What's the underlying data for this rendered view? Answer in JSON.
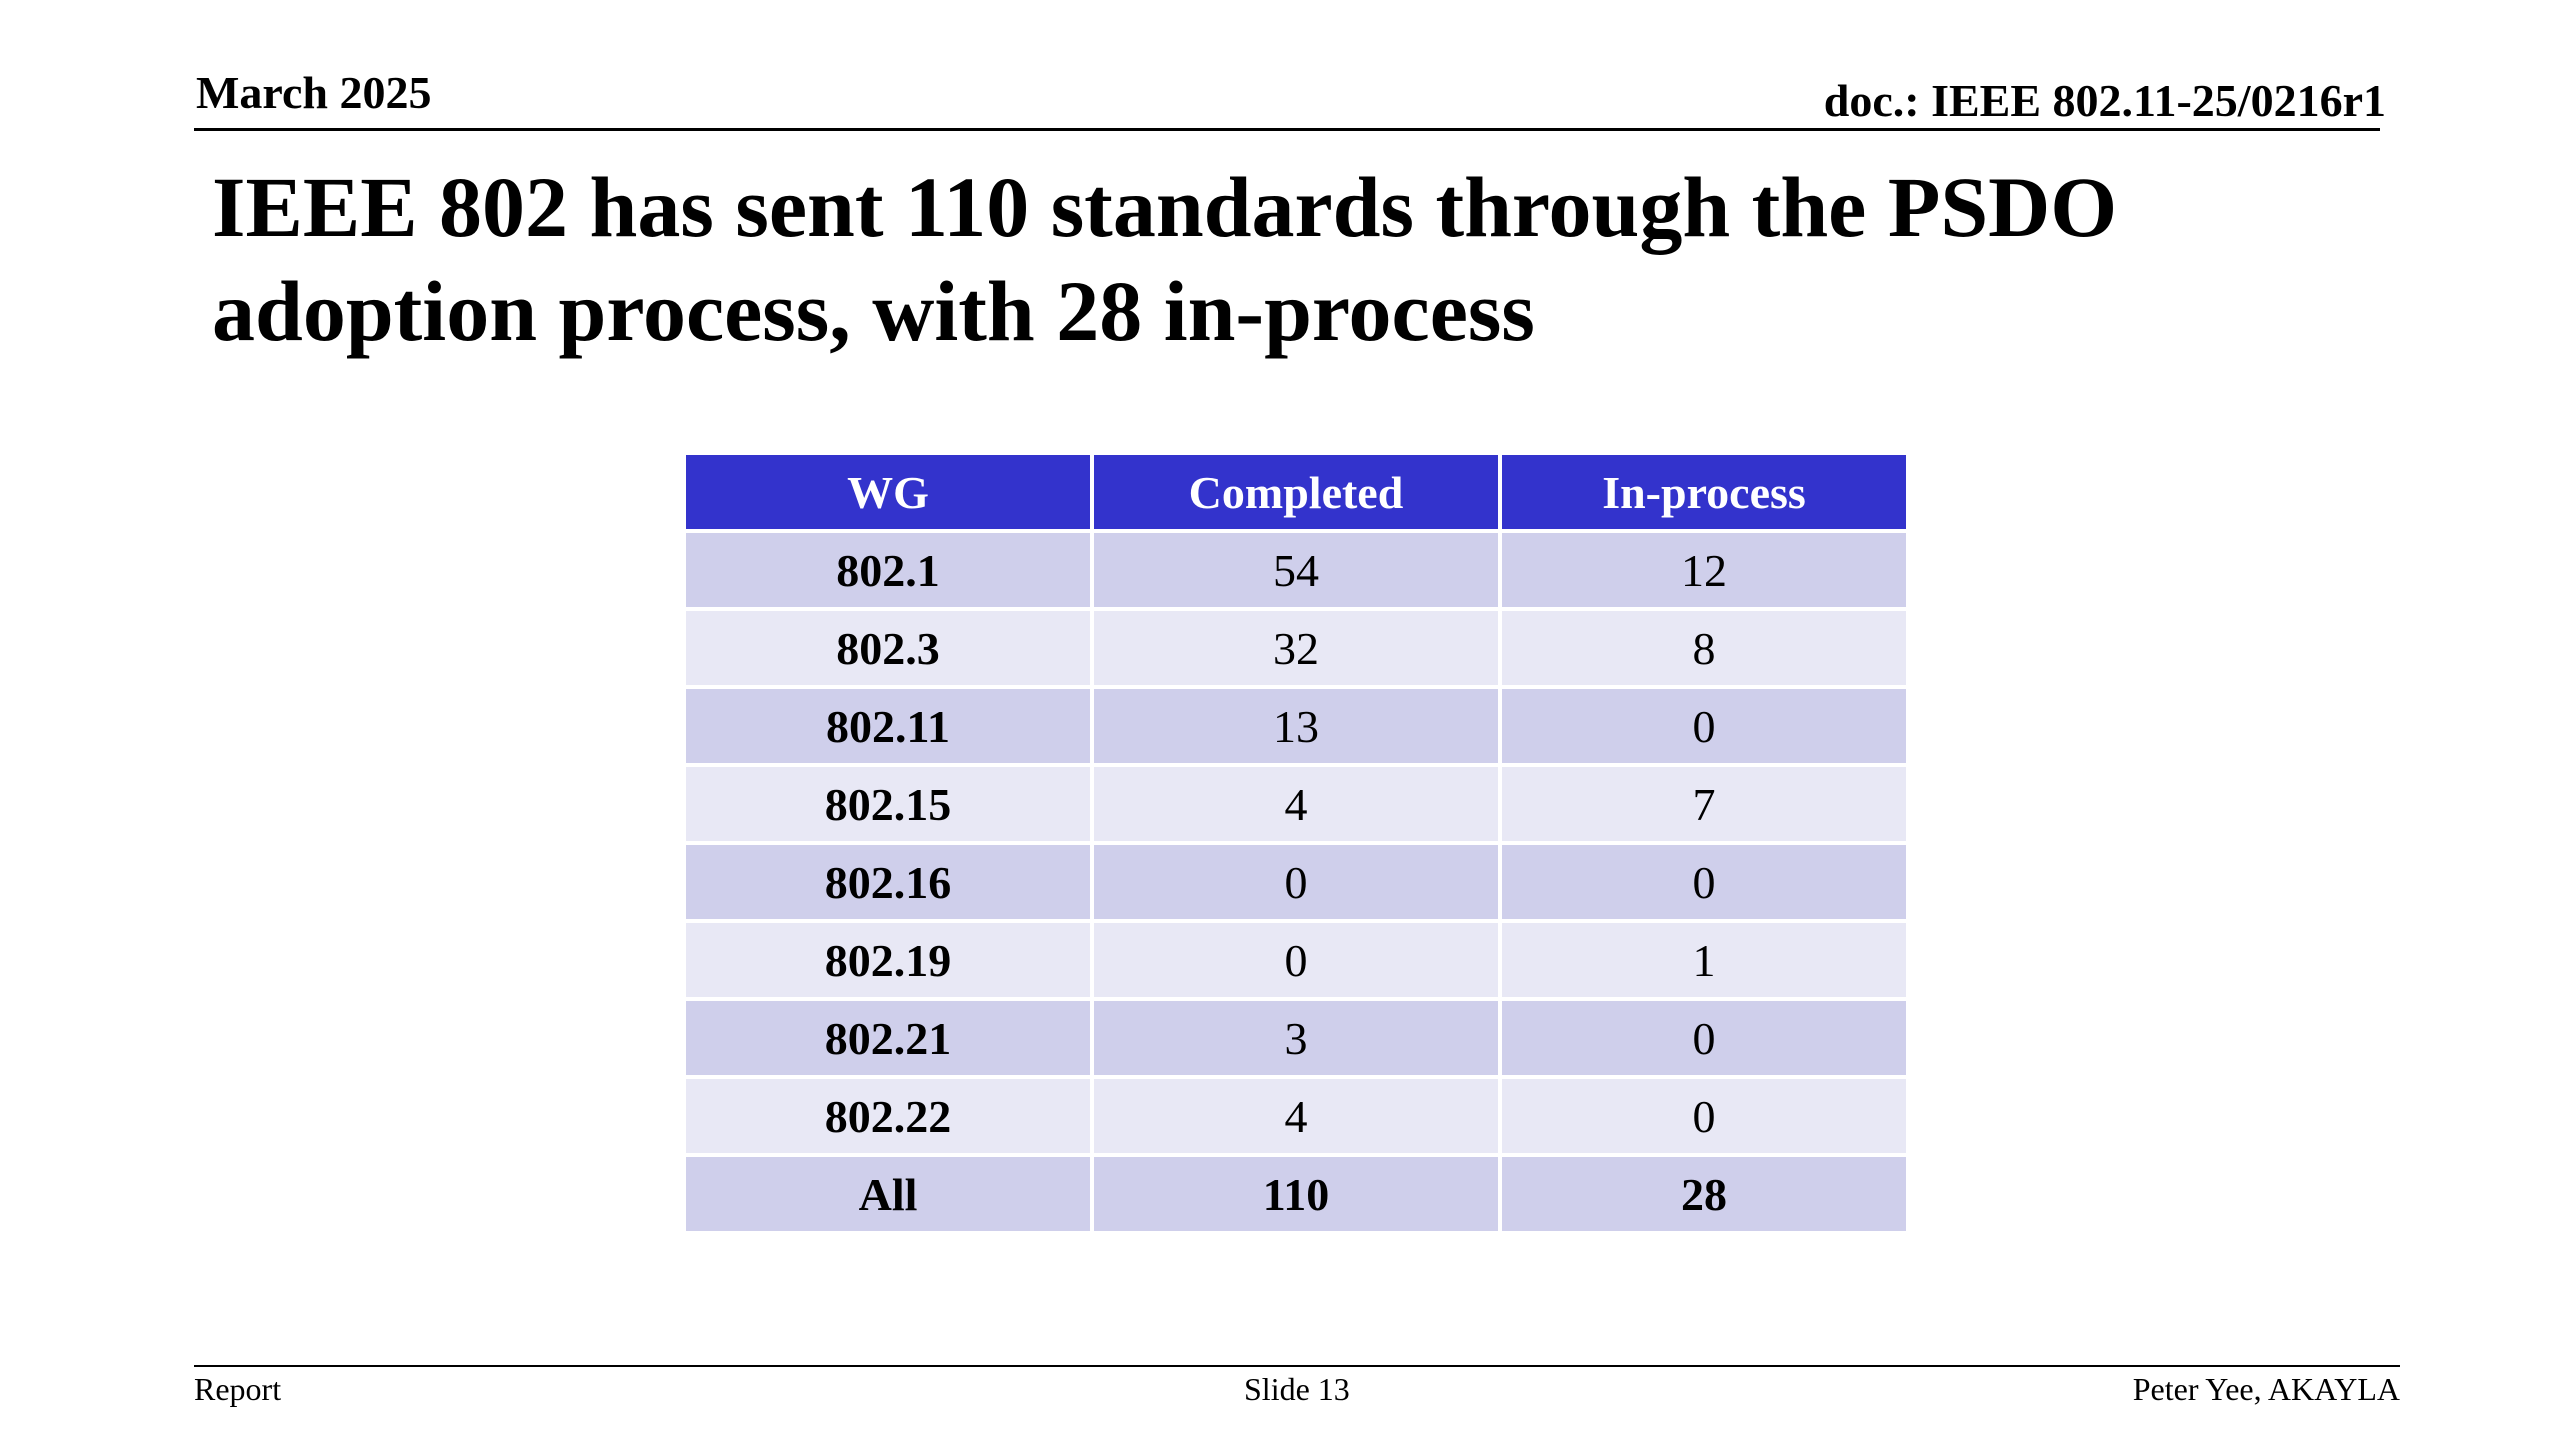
{
  "header": {
    "date": "March 2025",
    "doc": "doc.: IEEE 802.11-25/0216r1"
  },
  "title": "IEEE 802 has sent 110 standards through the PSDO adoption process, with 28 in-process",
  "table": {
    "columns": [
      "WG",
      "Completed",
      "In-process"
    ],
    "rows": [
      {
        "wg": "802.1",
        "completed": "54",
        "in_process": "12"
      },
      {
        "wg": "802.3",
        "completed": "32",
        "in_process": "8"
      },
      {
        "wg": "802.11",
        "completed": "13",
        "in_process": "0"
      },
      {
        "wg": "802.15",
        "completed": "4",
        "in_process": "7"
      },
      {
        "wg": "802.16",
        "completed": "0",
        "in_process": "0"
      },
      {
        "wg": "802.19",
        "completed": "0",
        "in_process": "1"
      },
      {
        "wg": "802.21",
        "completed": "3",
        "in_process": "0"
      },
      {
        "wg": "802.22",
        "completed": "4",
        "in_process": "0"
      }
    ],
    "total": {
      "wg": "All",
      "completed": "110",
      "in_process": "28"
    },
    "colors": {
      "header_bg": "#3333cc",
      "row_dark": "#cfcfeb",
      "row_light": "#e8e8f5"
    }
  },
  "footer": {
    "left": "Report",
    "center": "Slide 13",
    "right": "Peter Yee, AKAYLA"
  }
}
